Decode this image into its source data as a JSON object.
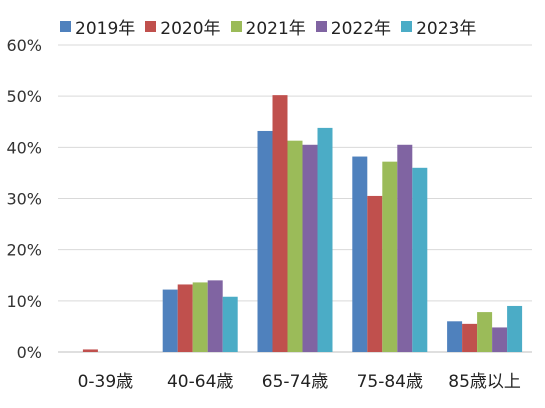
{
  "chart_data": {
    "type": "bar",
    "categories": [
      "0-39歳",
      "40-64歳",
      "65-74歳",
      "75-84歳",
      "85歳以上"
    ],
    "series": [
      {
        "name": "2019年",
        "color": "#4F81BD",
        "values": [
          0.0,
          12.2,
          43.2,
          38.2,
          6.0
        ]
      },
      {
        "name": "2020年",
        "color": "#C0504D",
        "values": [
          0.5,
          13.2,
          50.2,
          30.5,
          5.5
        ]
      },
      {
        "name": "2021年",
        "color": "#9BBB59",
        "values": [
          0.0,
          13.6,
          41.3,
          37.2,
          7.8
        ]
      },
      {
        "name": "2022年",
        "color": "#8064A2",
        "values": [
          0.0,
          14.0,
          40.5,
          40.5,
          4.8
        ]
      },
      {
        "name": "2023年",
        "color": "#4BACC6",
        "values": [
          0.0,
          10.8,
          43.8,
          36.0,
          9.0
        ]
      }
    ],
    "yticks": [
      "0%",
      "10%",
      "20%",
      "30%",
      "40%",
      "50%",
      "60%"
    ],
    "ylim": [
      0,
      60
    ],
    "grid": true,
    "legend_position": "top"
  }
}
